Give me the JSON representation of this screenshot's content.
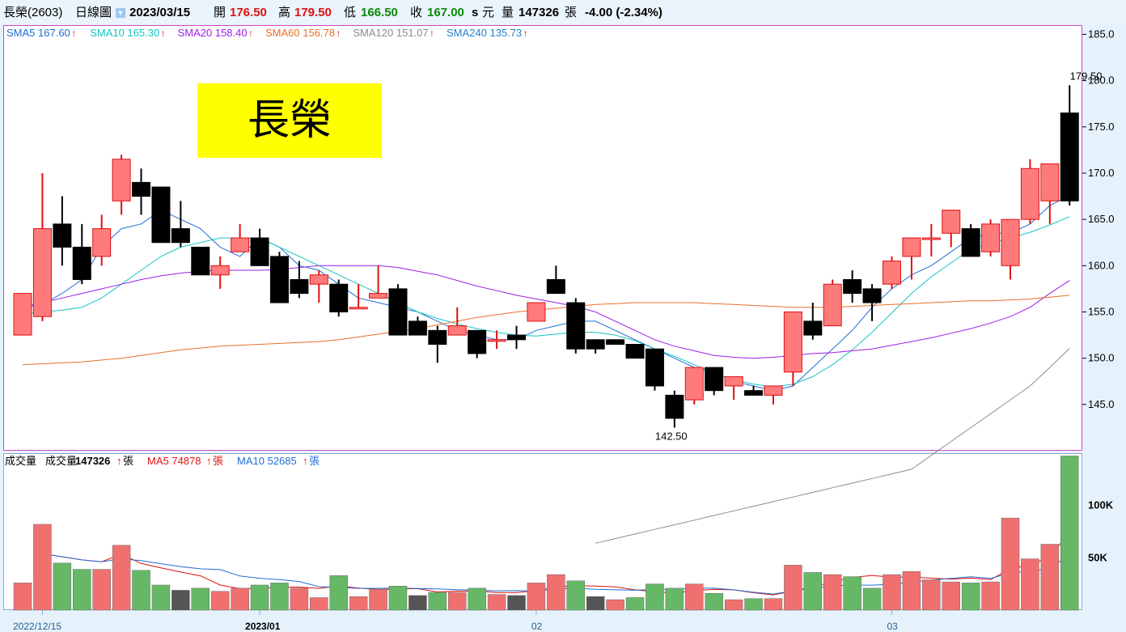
{
  "header": {
    "stock": "長榮(2603)",
    "chart_kind": "日線圖",
    "date": "2023/03/15",
    "open_label": "開",
    "open": "176.50",
    "high_label": "高",
    "high": "179.50",
    "low_label": "低",
    "low": "166.50",
    "close_label": "收",
    "close": "167.00",
    "unit_s": "s",
    "unit_yuan": "元",
    "vol_label": "量",
    "volume": "147326",
    "vol_unit": "張",
    "change": "-4.00 (-2.34%)"
  },
  "title_box": {
    "text": "長榮"
  },
  "sma_legend": [
    {
      "label": "SMA5",
      "value": "167.60",
      "color": "#1f6fd6"
    },
    {
      "label": "SMA10",
      "value": "165.30",
      "color": "#17c3c3"
    },
    {
      "label": "SMA20",
      "value": "158.40",
      "color": "#9b1fe6"
    },
    {
      "label": "SMA60",
      "value": "156.78",
      "color": "#e8702a"
    },
    {
      "label": "SMA120",
      "value": "151.07",
      "color": "#8c8c8c"
    },
    {
      "label": "SMA240",
      "value": "135.73",
      "color": "#2a80c8"
    }
  ],
  "vol_legend": {
    "title": "成交量",
    "vol_label": "成交量",
    "vol_value": "147326",
    "unit": "張",
    "ma5_label": "MA5",
    "ma5_value": "74878",
    "ma10_label": "MA10",
    "ma10_value": "52685"
  },
  "colors": {
    "up": "#ff7b7b",
    "up_wick": "#e01010",
    "down": "#000000",
    "vol_up": "#f07070",
    "vol_down": "#66b866",
    "vol_flat": "#555555",
    "panel_border": "#cc44cc"
  },
  "chart_data": {
    "type": "candlestick",
    "price_axis": {
      "min": 140,
      "max": 186,
      "ticks": [
        "185.0",
        "180.0",
        "175.0",
        "170.0",
        "165.0",
        "160.0",
        "155.0",
        "150.0",
        "145.0"
      ]
    },
    "volume_axis": {
      "min": 0,
      "max": 150000,
      "ticks": [
        "100K",
        "50K"
      ]
    },
    "x_labels": [
      {
        "index": 1,
        "text": "2022/12/15"
      },
      {
        "index": 12,
        "text": "2023/01"
      },
      {
        "index": 26,
        "text": "02"
      },
      {
        "index": 44,
        "text": "03"
      }
    ],
    "annotations": [
      {
        "index": 54,
        "price": 179.5,
        "text": "179.50"
      },
      {
        "index": 33,
        "price": 142.5,
        "text": "142.50"
      }
    ],
    "candles": [
      {
        "o": 152.5,
        "h": 157.0,
        "l": 152.5,
        "c": 157.0
      },
      {
        "o": 154.5,
        "h": 170.0,
        "l": 154.0,
        "c": 164.0
      },
      {
        "o": 164.5,
        "h": 167.5,
        "l": 160.0,
        "c": 162.0
      },
      {
        "o": 162.0,
        "h": 164.5,
        "l": 158.0,
        "c": 158.5
      },
      {
        "o": 161.0,
        "h": 165.5,
        "l": 160.0,
        "c": 164.0
      },
      {
        "o": 167.0,
        "h": 172.0,
        "l": 165.5,
        "c": 171.5
      },
      {
        "o": 169.0,
        "h": 170.5,
        "l": 165.5,
        "c": 167.5
      },
      {
        "o": 168.5,
        "h": 168.5,
        "l": 162.5,
        "c": 162.5
      },
      {
        "o": 164.0,
        "h": 167.0,
        "l": 162.0,
        "c": 162.5
      },
      {
        "o": 162.0,
        "h": 162.0,
        "l": 159.0,
        "c": 159.0
      },
      {
        "o": 159.0,
        "h": 161.0,
        "l": 157.5,
        "c": 160.0
      },
      {
        "o": 161.5,
        "h": 164.5,
        "l": 161.5,
        "c": 163.0
      },
      {
        "o": 163.0,
        "h": 164.0,
        "l": 160.0,
        "c": 160.0
      },
      {
        "o": 161.0,
        "h": 161.5,
        "l": 156.0,
        "c": 156.0
      },
      {
        "o": 158.5,
        "h": 160.5,
        "l": 156.5,
        "c": 157.0
      },
      {
        "o": 158.0,
        "h": 159.5,
        "l": 156.0,
        "c": 159.0
      },
      {
        "o": 158.0,
        "h": 158.5,
        "l": 154.5,
        "c": 155.0
      },
      {
        "o": 155.5,
        "h": 158.0,
        "l": 155.5,
        "c": 155.5
      },
      {
        "o": 156.5,
        "h": 160.0,
        "l": 156.5,
        "c": 157.0
      },
      {
        "o": 157.5,
        "h": 158.0,
        "l": 152.5,
        "c": 152.5
      },
      {
        "o": 154.0,
        "h": 154.5,
        "l": 152.5,
        "c": 152.5
      },
      {
        "o": 153.0,
        "h": 153.5,
        "l": 149.5,
        "c": 151.5
      },
      {
        "o": 152.5,
        "h": 155.5,
        "l": 152.5,
        "c": 153.5
      },
      {
        "o": 153.0,
        "h": 153.0,
        "l": 150.0,
        "c": 150.5
      },
      {
        "o": 152.0,
        "h": 153.0,
        "l": 151.0,
        "c": 152.0
      },
      {
        "o": 152.5,
        "h": 153.5,
        "l": 151.0,
        "c": 152.0
      },
      {
        "o": 154.0,
        "h": 156.0,
        "l": 154.0,
        "c": 156.0
      },
      {
        "o": 158.5,
        "h": 160.0,
        "l": 157.0,
        "c": 157.0
      },
      {
        "o": 156.0,
        "h": 156.5,
        "l": 150.5,
        "c": 151.0
      },
      {
        "o": 152.0,
        "h": 152.0,
        "l": 150.5,
        "c": 151.0
      },
      {
        "o": 152.0,
        "h": 152.0,
        "l": 151.5,
        "c": 151.5
      },
      {
        "o": 151.5,
        "h": 151.5,
        "l": 150.0,
        "c": 150.0
      },
      {
        "o": 151.0,
        "h": 151.0,
        "l": 146.5,
        "c": 147.0
      },
      {
        "o": 146.0,
        "h": 146.5,
        "l": 142.5,
        "c": 143.5
      },
      {
        "o": 145.5,
        "h": 149.0,
        "l": 145.0,
        "c": 149.0
      },
      {
        "o": 149.0,
        "h": 149.0,
        "l": 146.0,
        "c": 146.5
      },
      {
        "o": 147.0,
        "h": 148.0,
        "l": 145.5,
        "c": 148.0
      },
      {
        "o": 146.5,
        "h": 147.0,
        "l": 146.0,
        "c": 146.0
      },
      {
        "o": 146.0,
        "h": 147.0,
        "l": 145.0,
        "c": 147.0
      },
      {
        "o": 148.5,
        "h": 155.0,
        "l": 147.0,
        "c": 155.0
      },
      {
        "o": 154.0,
        "h": 156.0,
        "l": 152.0,
        "c": 152.5
      },
      {
        "o": 153.5,
        "h": 158.5,
        "l": 153.5,
        "c": 158.0
      },
      {
        "o": 158.5,
        "h": 159.5,
        "l": 156.0,
        "c": 157.0
      },
      {
        "o": 157.5,
        "h": 158.0,
        "l": 154.0,
        "c": 156.0
      },
      {
        "o": 158.0,
        "h": 161.0,
        "l": 157.5,
        "c": 160.5
      },
      {
        "o": 161.0,
        "h": 163.0,
        "l": 158.5,
        "c": 163.0
      },
      {
        "o": 163.0,
        "h": 164.5,
        "l": 161.0,
        "c": 163.0
      },
      {
        "o": 163.5,
        "h": 166.0,
        "l": 162.0,
        "c": 166.0
      },
      {
        "o": 164.0,
        "h": 164.5,
        "l": 161.0,
        "c": 161.0
      },
      {
        "o": 161.5,
        "h": 165.0,
        "l": 161.0,
        "c": 164.5
      },
      {
        "o": 160.0,
        "h": 165.0,
        "l": 158.5,
        "c": 165.0
      },
      {
        "o": 165.0,
        "h": 171.5,
        "l": 164.5,
        "c": 170.5
      },
      {
        "o": 167.0,
        "h": 171.0,
        "l": 164.5,
        "c": 171.0
      },
      {
        "o": 176.5,
        "h": 179.5,
        "l": 166.5,
        "c": 167.0
      }
    ],
    "volumes": [
      {
        "v": 26000,
        "dir": "up"
      },
      {
        "v": 82000,
        "dir": "up"
      },
      {
        "v": 45000,
        "dir": "down"
      },
      {
        "v": 39000,
        "dir": "down"
      },
      {
        "v": 39000,
        "dir": "up"
      },
      {
        "v": 62000,
        "dir": "up"
      },
      {
        "v": 38000,
        "dir": "down"
      },
      {
        "v": 24000,
        "dir": "down"
      },
      {
        "v": 19000,
        "dir": "flat"
      },
      {
        "v": 21000,
        "dir": "down"
      },
      {
        "v": 18000,
        "dir": "up"
      },
      {
        "v": 21000,
        "dir": "up"
      },
      {
        "v": 24000,
        "dir": "down"
      },
      {
        "v": 26000,
        "dir": "down"
      },
      {
        "v": 21000,
        "dir": "up"
      },
      {
        "v": 12000,
        "dir": "up"
      },
      {
        "v": 33000,
        "dir": "down"
      },
      {
        "v": 13000,
        "dir": "up"
      },
      {
        "v": 20000,
        "dir": "up"
      },
      {
        "v": 23000,
        "dir": "down"
      },
      {
        "v": 14000,
        "dir": "flat"
      },
      {
        "v": 17000,
        "dir": "down"
      },
      {
        "v": 17000,
        "dir": "up"
      },
      {
        "v": 21000,
        "dir": "down"
      },
      {
        "v": 15000,
        "dir": "up"
      },
      {
        "v": 14000,
        "dir": "flat"
      },
      {
        "v": 26000,
        "dir": "up"
      },
      {
        "v": 34000,
        "dir": "up"
      },
      {
        "v": 28000,
        "dir": "down"
      },
      {
        "v": 13000,
        "dir": "flat"
      },
      {
        "v": 10000,
        "dir": "up"
      },
      {
        "v": 12000,
        "dir": "down"
      },
      {
        "v": 25000,
        "dir": "down"
      },
      {
        "v": 21000,
        "dir": "down"
      },
      {
        "v": 25000,
        "dir": "up"
      },
      {
        "v": 16000,
        "dir": "down"
      },
      {
        "v": 10000,
        "dir": "up"
      },
      {
        "v": 11000,
        "dir": "down"
      },
      {
        "v": 11000,
        "dir": "up"
      },
      {
        "v": 43000,
        "dir": "up"
      },
      {
        "v": 36000,
        "dir": "down"
      },
      {
        "v": 34000,
        "dir": "up"
      },
      {
        "v": 32000,
        "dir": "down"
      },
      {
        "v": 21000,
        "dir": "down"
      },
      {
        "v": 34000,
        "dir": "up"
      },
      {
        "v": 37000,
        "dir": "up"
      },
      {
        "v": 29000,
        "dir": "up"
      },
      {
        "v": 27000,
        "dir": "up"
      },
      {
        "v": 26000,
        "dir": "down"
      },
      {
        "v": 27000,
        "dir": "up"
      },
      {
        "v": 88000,
        "dir": "up"
      },
      {
        "v": 49000,
        "dir": "up"
      },
      {
        "v": 63000,
        "dir": "up"
      },
      {
        "v": 147326,
        "dir": "down"
      }
    ],
    "sma_lines": {
      "SMA5": [
        155.5,
        155.8,
        157.0,
        158.5,
        162.0,
        164.0,
        164.5,
        166.0,
        165.0,
        164.0,
        162.0,
        161.0,
        163.0,
        162.0,
        160.0,
        159.5,
        158.0,
        156.5,
        156.0,
        155.5,
        155.0,
        154.0,
        153.0,
        152.5,
        152.0,
        152.0,
        153.0,
        153.5,
        154.0,
        154.0,
        153.0,
        152.0,
        151.0,
        150.0,
        149.0,
        148.5,
        147.5,
        147.0,
        146.5,
        147.0,
        149.0,
        151.0,
        153.0,
        155.5,
        157.5,
        159.0,
        160.0,
        161.5,
        163.0,
        163.5,
        163.5,
        164.5,
        166.5,
        167.6
      ],
      "SMA10": [
        154.8,
        155.0,
        155.2,
        155.5,
        156.5,
        158.0,
        159.5,
        161.0,
        162.0,
        162.5,
        163.0,
        163.0,
        163.0,
        162.0,
        161.0,
        160.0,
        159.0,
        158.0,
        157.0,
        156.0,
        155.0,
        154.3,
        153.7,
        153.2,
        152.8,
        152.5,
        152.4,
        152.6,
        152.8,
        152.8,
        152.5,
        151.9,
        151.0,
        150.2,
        149.3,
        148.4,
        147.7,
        147.2,
        146.9,
        147.2,
        148.0,
        149.3,
        150.9,
        152.8,
        154.9,
        157.0,
        158.8,
        160.3,
        161.8,
        162.4,
        163.0,
        163.6,
        164.4,
        165.3
      ],
      "SMA20": [
        155.5,
        156.0,
        156.5,
        157.0,
        157.5,
        158.0,
        158.5,
        158.9,
        159.2,
        159.4,
        159.5,
        159.5,
        159.5,
        159.6,
        159.8,
        160.0,
        160.0,
        160.0,
        160.0,
        159.8,
        159.4,
        159.0,
        158.4,
        157.8,
        157.3,
        156.8,
        156.4,
        156.0,
        155.6,
        155.0,
        154.0,
        153.0,
        152.0,
        151.3,
        150.8,
        150.3,
        150.1,
        150.0,
        150.1,
        150.3,
        150.5,
        150.6,
        150.8,
        151.0,
        151.4,
        151.8,
        152.2,
        152.7,
        153.2,
        153.8,
        154.5,
        155.5,
        157.0,
        158.4
      ],
      "SMA60": [
        149.3,
        149.4,
        149.5,
        149.6,
        149.8,
        150.0,
        150.3,
        150.6,
        150.9,
        151.1,
        151.3,
        151.4,
        151.5,
        151.6,
        151.7,
        151.8,
        152.0,
        152.3,
        152.6,
        152.9,
        153.2,
        153.6,
        154.0,
        154.4,
        154.7,
        155.0,
        155.2,
        155.4,
        155.6,
        155.8,
        155.9,
        156.0,
        156.0,
        156.0,
        156.0,
        155.9,
        155.8,
        155.7,
        155.6,
        155.5,
        155.5,
        155.5,
        155.6,
        155.7,
        155.8,
        155.9,
        156.0,
        156.1,
        156.2,
        156.2,
        156.3,
        156.4,
        156.6,
        156.8
      ],
      "SMA120": [
        null,
        null,
        null,
        null,
        null,
        null,
        null,
        null,
        null,
        null,
        null,
        null,
        null,
        null,
        null,
        null,
        null,
        null,
        null,
        null,
        null,
        null,
        null,
        null,
        null,
        null,
        null,
        null,
        null,
        130.0,
        130.5,
        131.0,
        131.5,
        132.0,
        132.5,
        133.0,
        133.5,
        134.0,
        134.5,
        135.0,
        135.5,
        136.0,
        136.5,
        137.0,
        137.5,
        138.0,
        139.5,
        141.0,
        142.5,
        144.0,
        145.5,
        147.0,
        149.0,
        151.07
      ]
    }
  }
}
